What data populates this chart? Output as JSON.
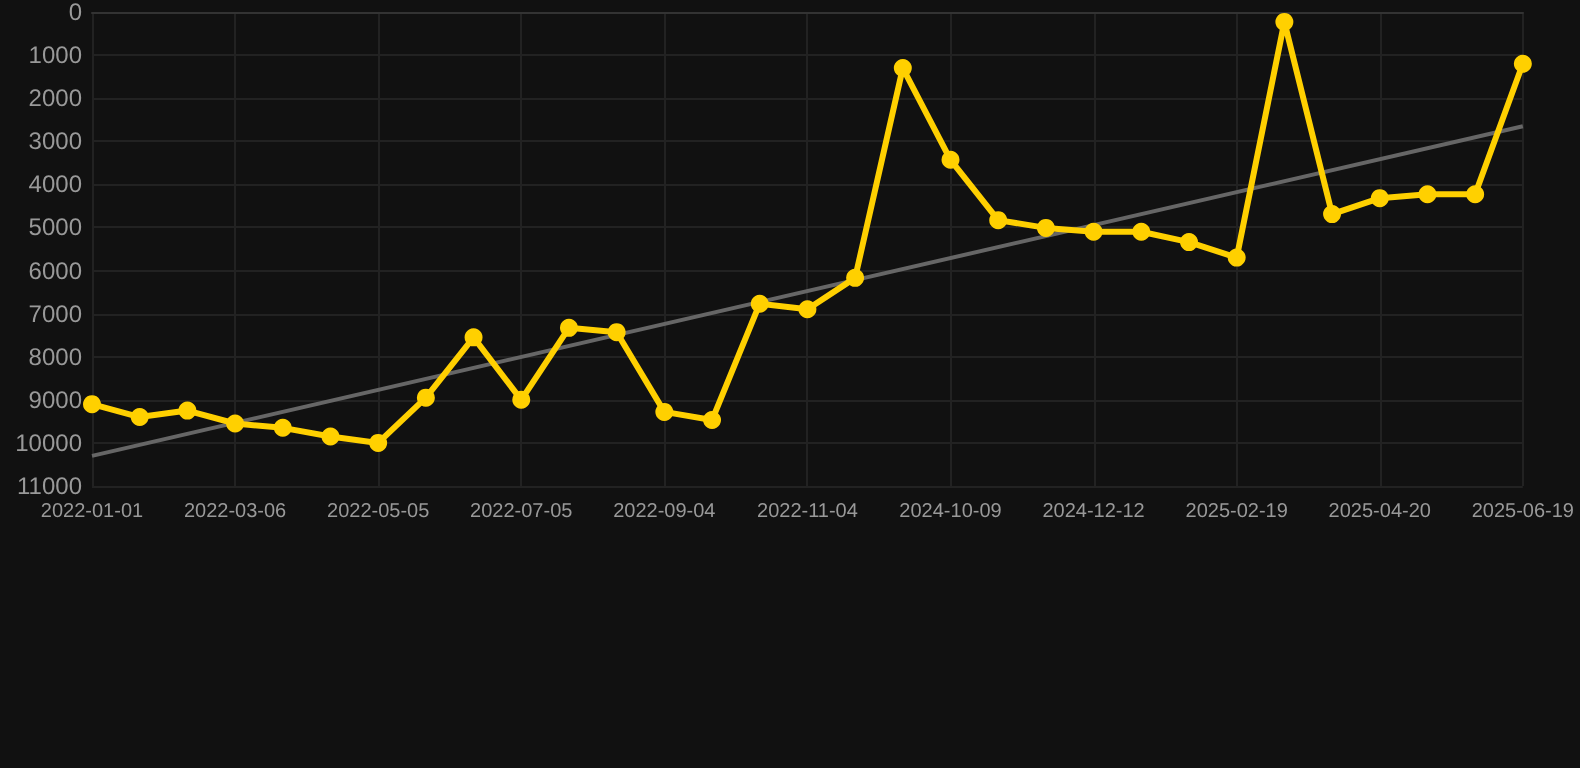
{
  "chart_data": {
    "type": "line",
    "categories": [
      "2022-01-01",
      null,
      null,
      "2022-03-06",
      null,
      null,
      "2022-05-05",
      null,
      null,
      "2022-07-05",
      null,
      null,
      "2022-09-04",
      null,
      null,
      "2022-11-04",
      null,
      null,
      "2024-10-09",
      null,
      null,
      "2024-12-12",
      null,
      null,
      "2025-02-19",
      null,
      null,
      "2025-04-20",
      null,
      null,
      "2025-06-19"
    ],
    "series": [
      {
        "color": "#ffd000",
        "values": [
          9100,
          9400,
          9250,
          9550,
          9650,
          9850,
          10000,
          8950,
          7550,
          9000,
          7330,
          7430,
          9280,
          9470,
          6770,
          6900,
          6170,
          1300,
          3430,
          4830,
          5010,
          5100,
          5100,
          5340,
          5700,
          230,
          4690,
          4320,
          4230,
          4230,
          1200
        ]
      },
      {
        "color": "#666666",
        "marker": "none",
        "values": [
          10300,
          null,
          null,
          null,
          null,
          null,
          null,
          null,
          null,
          null,
          null,
          null,
          null,
          null,
          null,
          null,
          null,
          null,
          null,
          null,
          null,
          null,
          null,
          null,
          null,
          null,
          null,
          null,
          null,
          null,
          2650
        ]
      }
    ],
    "ylim": [
      11000,
      0
    ],
    "yticks": [
      0,
      1000,
      2000,
      3000,
      4000,
      5000,
      6000,
      7000,
      8000,
      9000,
      10000,
      11000
    ],
    "grid": true,
    "marker": "circle",
    "line_style": "solid"
  }
}
